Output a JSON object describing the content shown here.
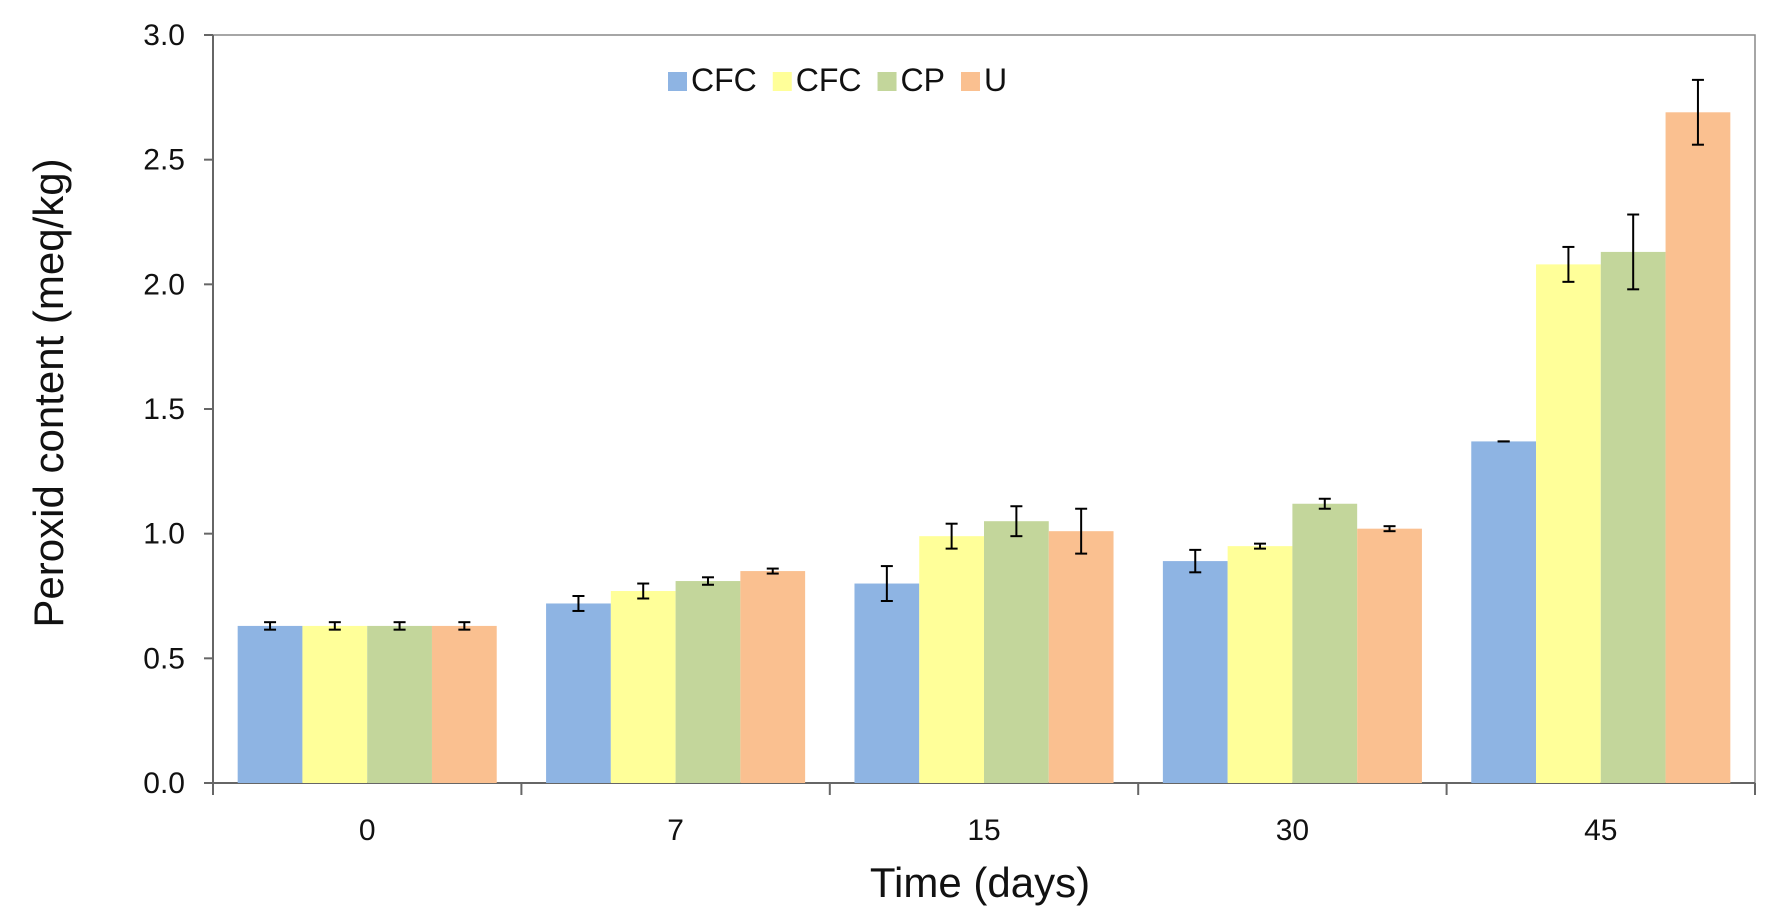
{
  "chart_data": {
    "type": "bar",
    "title": "",
    "xlabel": "Time (days)",
    "ylabel": "Peroxid content (meq/kg)",
    "categories": [
      "0",
      "7",
      "15",
      "30",
      "45"
    ],
    "ylim": [
      0,
      3.0
    ],
    "yticks": [
      0.0,
      0.5,
      1.0,
      1.5,
      2.0,
      2.5,
      3.0
    ],
    "ytick_labels": [
      "0.0",
      "0.5",
      "1.0",
      "1.5",
      "2.0",
      "2.5",
      "3.0"
    ],
    "grid": false,
    "legend_position": "top-center",
    "series": [
      {
        "name": "CFC",
        "color": "#8EB4E3",
        "values": [
          0.63,
          0.72,
          0.8,
          0.89,
          1.37
        ],
        "errors": [
          0.015,
          0.03,
          0.07,
          0.045,
          0.0
        ]
      },
      {
        "name": "CFC",
        "color": "#FFFF99",
        "values": [
          0.63,
          0.77,
          0.99,
          0.95,
          2.08
        ],
        "errors": [
          0.015,
          0.03,
          0.05,
          0.01,
          0.07
        ]
      },
      {
        "name": "CP",
        "color": "#C3D69B",
        "values": [
          0.63,
          0.81,
          1.05,
          1.12,
          2.13
        ],
        "errors": [
          0.015,
          0.015,
          0.06,
          0.02,
          0.15
        ]
      },
      {
        "name": "U",
        "color": "#FAC090",
        "values": [
          0.63,
          0.85,
          1.01,
          1.02,
          2.69
        ],
        "errors": [
          0.015,
          0.01,
          0.09,
          0.01,
          0.13
        ]
      }
    ]
  }
}
